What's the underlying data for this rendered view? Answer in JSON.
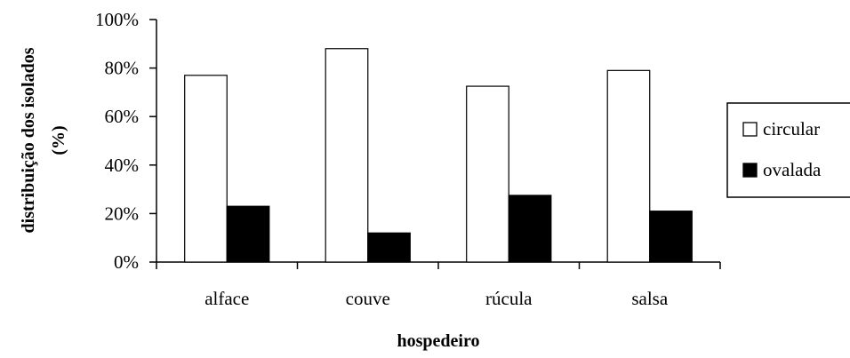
{
  "chart_data": {
    "type": "bar",
    "categories": [
      "alface",
      "couve",
      "rúcula",
      "salsa"
    ],
    "series": [
      {
        "name": "circular",
        "values": [
          77,
          88,
          72.5,
          79
        ],
        "color": "#ffffff"
      },
      {
        "name": "ovalada",
        "values": [
          23,
          12,
          27.5,
          21
        ],
        "color": "#000000"
      }
    ],
    "xlabel": "hospedeiro",
    "ylabel_lines": [
      "distribuição dos isolados",
      "(%)"
    ],
    "ylim": [
      0,
      100
    ],
    "yticks": [
      "0%",
      "20%",
      "40%",
      "60%",
      "80%",
      "100%"
    ],
    "grid": false,
    "legend_position": "right"
  }
}
